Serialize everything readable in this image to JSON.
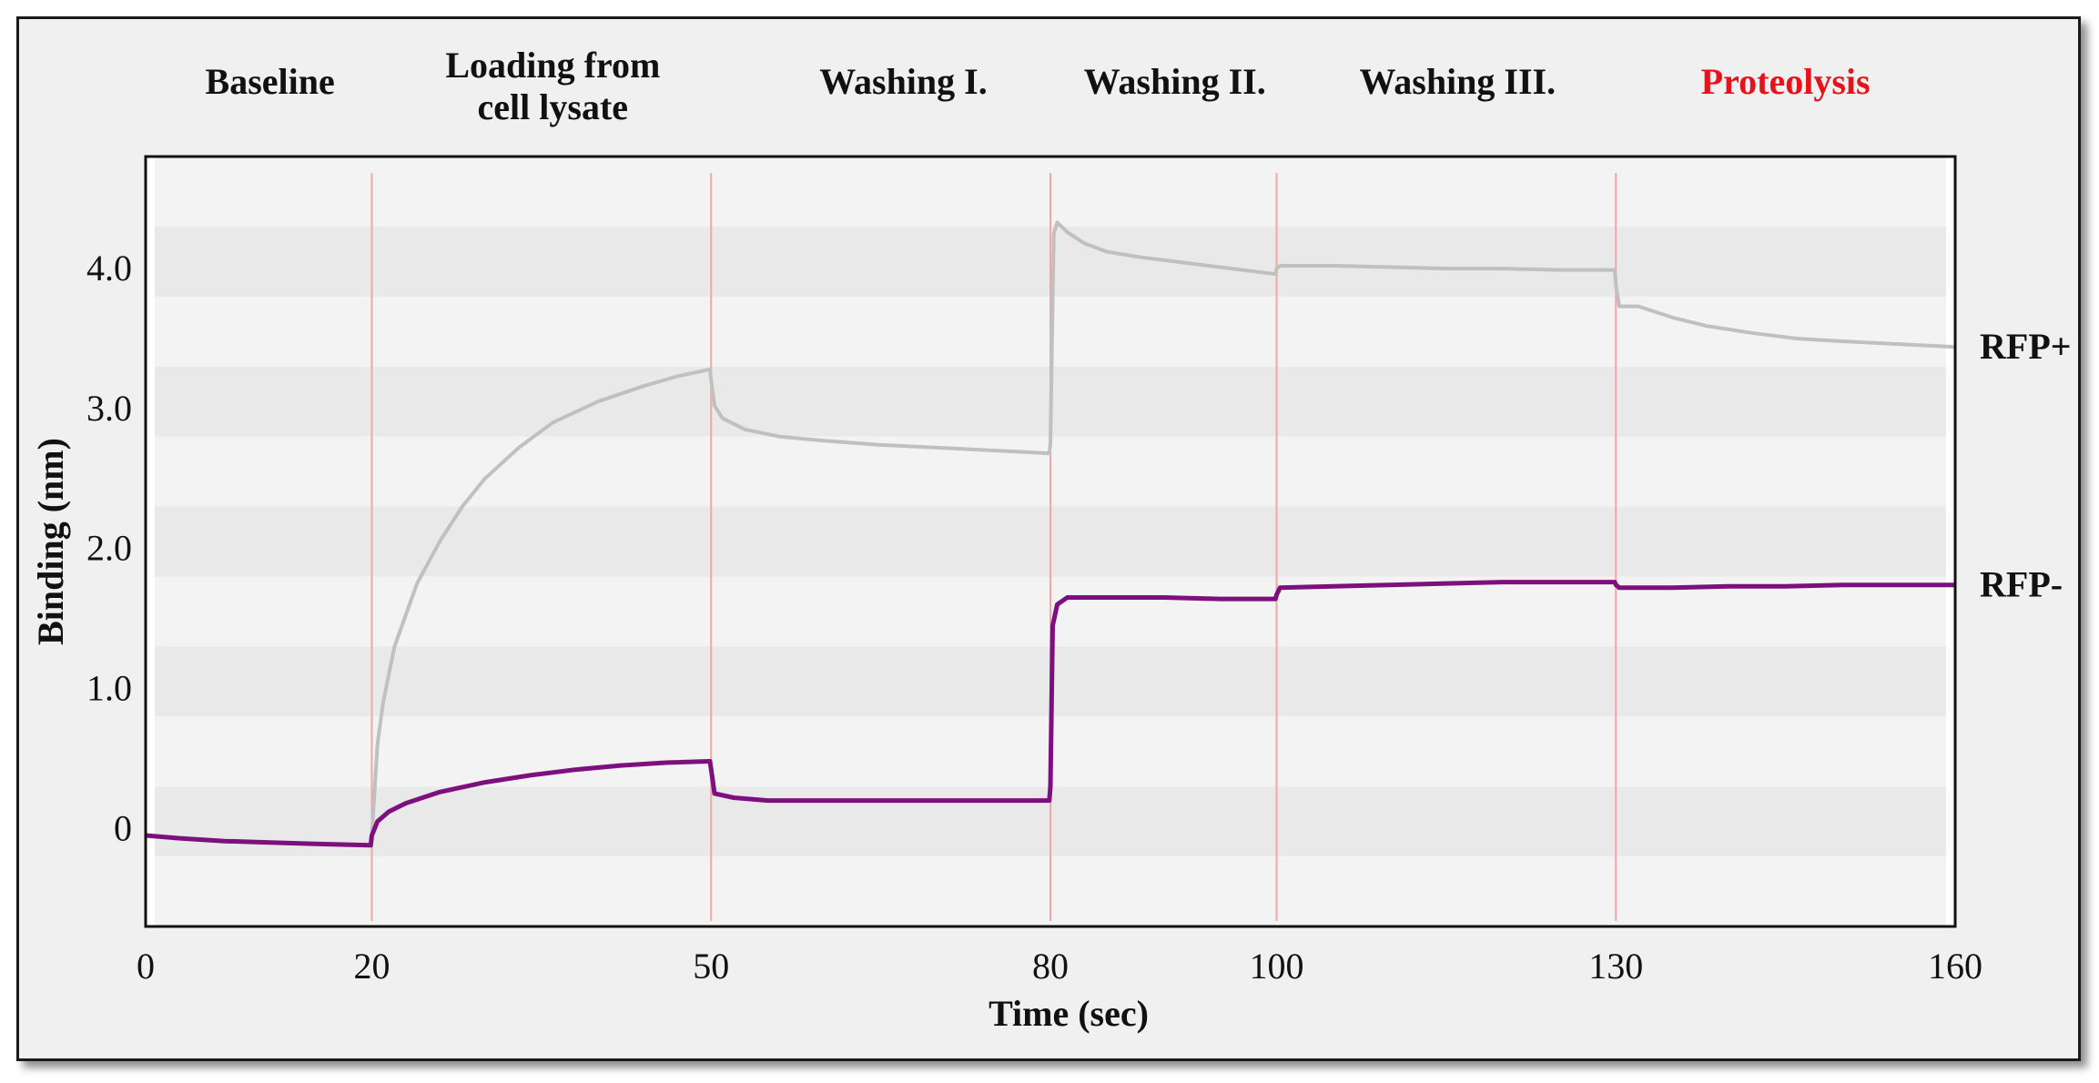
{
  "chart_data": {
    "type": "line",
    "xlabel": "Time (sec)",
    "ylabel": "Binding (nm)",
    "xlim": [
      0,
      160
    ],
    "ylim": [
      -0.7,
      4.8
    ],
    "x_ticks": [
      {
        "value": 0,
        "label": "0"
      },
      {
        "value": 20,
        "label": "20"
      },
      {
        "value": 50,
        "label": "50"
      },
      {
        "value": 80,
        "label": "80"
      },
      {
        "value": 100,
        "label": "100"
      },
      {
        "value": 130,
        "label": "130"
      },
      {
        "value": 160,
        "label": "160"
      }
    ],
    "y_ticks": [
      {
        "value": 0,
        "label": "0"
      },
      {
        "value": 1,
        "label": "1.0"
      },
      {
        "value": 2,
        "label": "2.0"
      },
      {
        "value": 3,
        "label": "3.0"
      },
      {
        "value": 4,
        "label": "4.0"
      }
    ],
    "phase_boundaries": [
      20,
      50,
      80,
      100,
      130
    ],
    "phases": [
      {
        "label": "Baseline",
        "center": 11,
        "color": "#111111"
      },
      {
        "label": "Loading from\ncell lysate",
        "center": 36,
        "color": "#111111"
      },
      {
        "label": "Washing I.",
        "center": 67,
        "color": "#111111"
      },
      {
        "label": "Washing II.",
        "center": 91,
        "color": "#111111"
      },
      {
        "label": "Washing III.",
        "center": 116,
        "color": "#111111"
      },
      {
        "label": "Proteolysis",
        "center": 145,
        "color": "#e8121b"
      }
    ],
    "series": [
      {
        "name": "RFP+",
        "color": "#c0c0c0",
        "points": [
          [
            0,
            -0.05
          ],
          [
            5,
            -0.08
          ],
          [
            10,
            -0.1
          ],
          [
            15,
            -0.11
          ],
          [
            19.9,
            -0.12
          ],
          [
            20,
            -0.05
          ],
          [
            20.5,
            0.6
          ],
          [
            21,
            0.9
          ],
          [
            22,
            1.3
          ],
          [
            24,
            1.75
          ],
          [
            26,
            2.05
          ],
          [
            28,
            2.3
          ],
          [
            30,
            2.5
          ],
          [
            33,
            2.72
          ],
          [
            36,
            2.9
          ],
          [
            40,
            3.05
          ],
          [
            44,
            3.16
          ],
          [
            47,
            3.23
          ],
          [
            49.9,
            3.28
          ],
          [
            50,
            3.2
          ],
          [
            50.3,
            3.02
          ],
          [
            51,
            2.93
          ],
          [
            53,
            2.85
          ],
          [
            56,
            2.8
          ],
          [
            60,
            2.77
          ],
          [
            65,
            2.74
          ],
          [
            70,
            2.72
          ],
          [
            75,
            2.7
          ],
          [
            79.9,
            2.68
          ],
          [
            80,
            2.75
          ],
          [
            80.3,
            4.25
          ],
          [
            80.6,
            4.33
          ],
          [
            81.5,
            4.26
          ],
          [
            83,
            4.18
          ],
          [
            85,
            4.12
          ],
          [
            88,
            4.08
          ],
          [
            92,
            4.04
          ],
          [
            96,
            4.0
          ],
          [
            99.9,
            3.96
          ],
          [
            100,
            4.0
          ],
          [
            100.3,
            4.02
          ],
          [
            105,
            4.02
          ],
          [
            110,
            4.01
          ],
          [
            115,
            4.0
          ],
          [
            120,
            4.0
          ],
          [
            125,
            3.99
          ],
          [
            129.9,
            3.99
          ],
          [
            130,
            3.88
          ],
          [
            130.3,
            3.73
          ],
          [
            132,
            3.73
          ],
          [
            135,
            3.65
          ],
          [
            138,
            3.59
          ],
          [
            142,
            3.54
          ],
          [
            146,
            3.5
          ],
          [
            150,
            3.48
          ],
          [
            155,
            3.46
          ],
          [
            160,
            3.44
          ]
        ]
      },
      {
        "name": "RFP-",
        "color": "#7d0f7e",
        "points": [
          [
            0,
            -0.05
          ],
          [
            3,
            -0.07
          ],
          [
            7,
            -0.09
          ],
          [
            11,
            -0.1
          ],
          [
            15,
            -0.11
          ],
          [
            19.9,
            -0.12
          ],
          [
            20,
            -0.05
          ],
          [
            20.5,
            0.05
          ],
          [
            21.5,
            0.12
          ],
          [
            23,
            0.18
          ],
          [
            26,
            0.26
          ],
          [
            30,
            0.33
          ],
          [
            34,
            0.38
          ],
          [
            38,
            0.42
          ],
          [
            42,
            0.45
          ],
          [
            46,
            0.47
          ],
          [
            49.9,
            0.48
          ],
          [
            50,
            0.42
          ],
          [
            50.3,
            0.25
          ],
          [
            52,
            0.22
          ],
          [
            55,
            0.2
          ],
          [
            60,
            0.2
          ],
          [
            65,
            0.2
          ],
          [
            70,
            0.2
          ],
          [
            75,
            0.2
          ],
          [
            79.9,
            0.2
          ],
          [
            80,
            0.3
          ],
          [
            80.2,
            1.45
          ],
          [
            80.6,
            1.6
          ],
          [
            81.5,
            1.65
          ],
          [
            85,
            1.65
          ],
          [
            90,
            1.65
          ],
          [
            95,
            1.64
          ],
          [
            99.9,
            1.64
          ],
          [
            100,
            1.67
          ],
          [
            100.3,
            1.72
          ],
          [
            105,
            1.73
          ],
          [
            110,
            1.74
          ],
          [
            115,
            1.75
          ],
          [
            120,
            1.76
          ],
          [
            125,
            1.76
          ],
          [
            129.9,
            1.76
          ],
          [
            130,
            1.74
          ],
          [
            130.3,
            1.72
          ],
          [
            135,
            1.72
          ],
          [
            140,
            1.73
          ],
          [
            145,
            1.73
          ],
          [
            150,
            1.74
          ],
          [
            155,
            1.74
          ],
          [
            160,
            1.74
          ]
        ]
      }
    ]
  }
}
